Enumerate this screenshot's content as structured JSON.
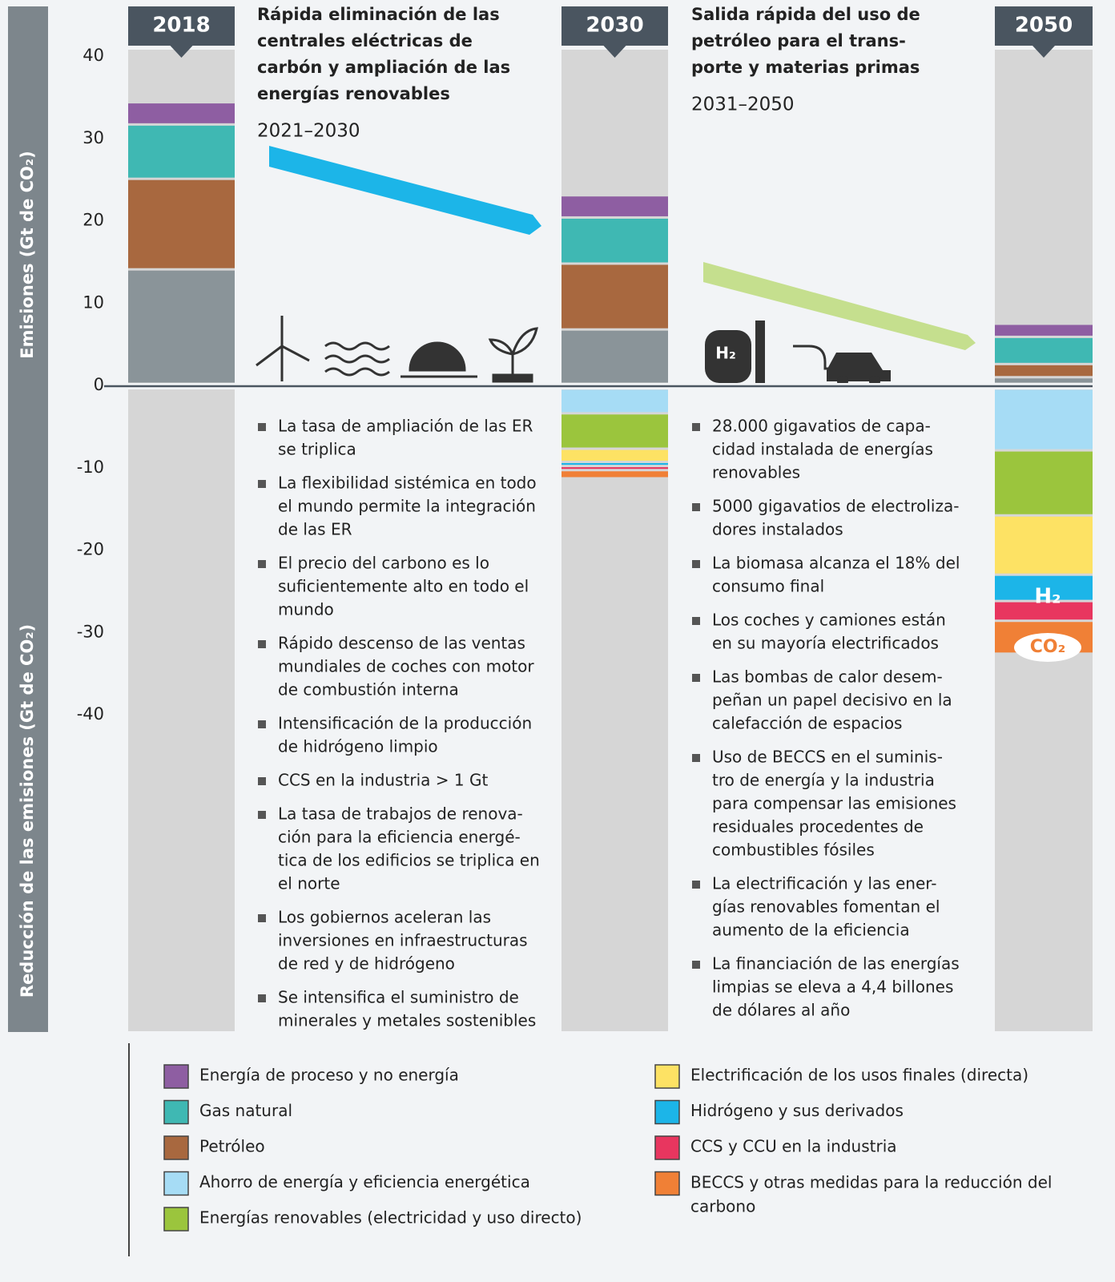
{
  "chart_data": {
    "type": "bar",
    "stacked": true,
    "categories": [
      "2018",
      "2030",
      "2050"
    ],
    "ylim": [
      -40,
      40
    ],
    "yticks": [
      40,
      30,
      20,
      10,
      0,
      -10,
      -20,
      -30,
      -40
    ],
    "y_label_top": "Emisiones (Gt de CO₂)",
    "y_label_bottom": "Reducción de las emisiones (Gt de CO₂)",
    "series": [
      {
        "name": "Energía de proceso y no energía",
        "color": "#8e5ea2",
        "values": [
          2.7,
          2.7,
          1.6
        ]
      },
      {
        "name": "Gas natural",
        "color": "#3fb8b3",
        "values": [
          6.6,
          5.6,
          3.3
        ]
      },
      {
        "name": "Petróleo",
        "color": "#a8683f",
        "values": [
          11,
          8,
          1.6
        ]
      },
      {
        "name": "Ahorro de energía y eficiencia energética",
        "color": "#a6dcf5",
        "values": [
          null,
          -3,
          -7.5
        ]
      },
      {
        "name": "Energías renovables (electricidad y uso directo)",
        "color": "#9bc53d",
        "values": [
          null,
          -4.3,
          -7.9
        ]
      },
      {
        "name": "Electrificación de los usos finales (directa)",
        "color": "#fde264",
        "values": [
          null,
          -1.6,
          -7.2
        ]
      },
      {
        "name": "Hidrógeno y sus derivados",
        "color": "#1cb5e8",
        "values": [
          null,
          -0.5,
          -3.2
        ]
      },
      {
        "name": "CCS y CCU en la industria",
        "color": "#e8365f",
        "values": [
          null,
          -0.5,
          -2.4
        ]
      },
      {
        "name": "BECCS y otras medidas para la reducción del carbono",
        "color": "#f08036",
        "values": [
          null,
          -1,
          -4
        ]
      },
      {
        "color": "#8a9499",
        "values": [
          13.9,
          6.6,
          0.8
        ]
      }
    ],
    "icon_labels": [
      "H₂",
      "H₂",
      "CO₂"
    ],
    "panels": [
      {
        "title": [
          "Rápida eliminación de las",
          "centrales eléctricas de",
          "carbón y ampliación de las",
          "energías renovables"
        ],
        "period": "2021–2030",
        "bullets": [
          [
            "La tasa de ampliación de las ER",
            "se triplica"
          ],
          [
            "La flexibilidad sistémica en todo",
            "el mundo permite la integración",
            "de las ER"
          ],
          [
            "El precio del carbono es lo",
            "suficientemente alto en todo el",
            "mundo"
          ],
          [
            "Rápido descenso de las ventas",
            "mundiales de coches con motor",
            "de combustión interna"
          ],
          [
            "Intensificación de la producción",
            "de hidrógeno limpio"
          ],
          [
            "CCS en la industria > 1 Gt"
          ],
          [
            "La tasa de trabajos de renova-",
            "ción para la eficiencia energé-",
            "tica de los edificios se triplica en",
            "el norte"
          ],
          [
            "Los gobiernos aceleran las",
            "inversiones en infraestructuras",
            "de red y de hidrógeno"
          ],
          [
            "Se intensifica el suministro de",
            "minerales y metales sostenibles"
          ]
        ]
      },
      {
        "title": [
          "Salida rápida del uso de",
          "petróleo para el trans-",
          "porte y materias primas"
        ],
        "period": "2031–2050",
        "bullets": [
          [
            "28.000 gigavatios de capa-",
            "cidad instalada de energías",
            "renovables"
          ],
          [
            "5000 gigavatios de electroliza-",
            "dores instalados"
          ],
          [
            "La biomasa alcanza el 18% del",
            "consumo final"
          ],
          [
            "Los coches y camiones están",
            "en su mayoría electrificados"
          ],
          [
            "Las bombas de calor desem-",
            "peñan un papel decisivo en la",
            "calefacción de espacios"
          ],
          [
            "Uso de BECCS en el suminis-",
            "tro de energía y la industria",
            "para compensar las emisiones",
            "residuales procedentes de",
            "combustibles fósiles"
          ],
          [
            "La electrificación y las ener-",
            "gías renovables fomentan el",
            "aumento de la eficiencia"
          ],
          [
            "La financiación de las energías",
            "limpias se eleva a 4,4 billones",
            "de dólares al año"
          ]
        ]
      }
    ]
  }
}
